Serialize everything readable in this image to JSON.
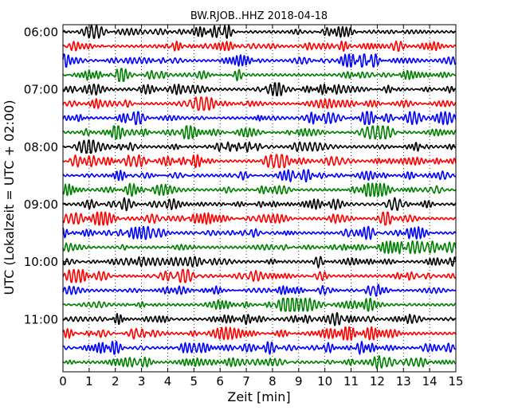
{
  "chart_data": {
    "type": "line",
    "title": "BW.RJOB..HHZ 2018-04-18",
    "xlabel": "Zeit  [min]",
    "ylabel": "UTC (Lokalzeit = UTC + 02:00)",
    "xlim": [
      0,
      15
    ],
    "xticks": [
      "0",
      "1",
      "2",
      "3",
      "4",
      "5",
      "6",
      "7",
      "8",
      "9",
      "10",
      "11",
      "12",
      "13",
      "14",
      "15"
    ],
    "yticks": [
      {
        "label": "06:00",
        "trace": 0
      },
      {
        "label": "07:00",
        "trace": 4
      },
      {
        "label": "08:00",
        "trace": 8
      },
      {
        "label": "09:00",
        "trace": 12
      },
      {
        "label": "10:00",
        "trace": 16
      },
      {
        "label": "11:00",
        "trace": 20
      }
    ],
    "trace_count": 24,
    "trace_colors": [
      "#000000",
      "#ff0000",
      "#0000ff",
      "#008000"
    ],
    "grid": "vertical dotted lines at each minute",
    "series_note": "each row is a 15-minute seismogram segment, colors cycle black, red, blue, green"
  }
}
